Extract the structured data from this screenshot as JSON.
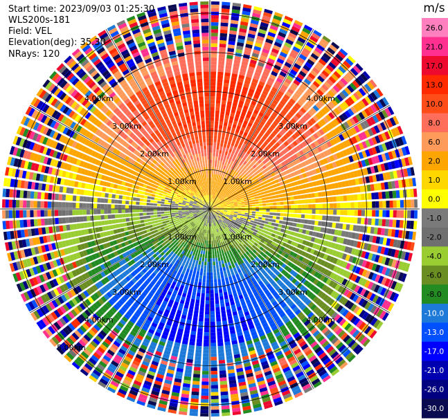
{
  "info": {
    "start_time": "Start time: 2023/09/03 01:25:30",
    "instrument": "WLS200s-181",
    "field": "Field: VEL",
    "elevation": "Elevation(deg): 35.30",
    "nrays": "NRays: 120"
  },
  "chart_data": {
    "type": "heatmap",
    "projection": "polar PPI",
    "field": "VEL",
    "unit_label": "m/s",
    "n_rays": 120,
    "max_range_km": 5.3,
    "range_rings_km": [
      1,
      2,
      3,
      4,
      5
    ],
    "ring_labels": [
      "1.00km",
      "2.00km",
      "3.00km",
      "4.00km",
      "5.00km"
    ],
    "spoke_angles_deg": [
      0,
      30,
      60,
      90,
      120,
      150,
      180,
      210,
      240,
      270,
      300,
      330
    ],
    "colorbar": {
      "tick_labels": [
        "26.0",
        "21.0",
        "17.0",
        "13.0",
        "10.0",
        "8.0",
        "6.0",
        "2.0",
        "1.0",
        "0.0",
        "-1.0",
        "-2.0",
        "-4.0",
        "-6.0",
        "-8.0",
        "-10.0",
        "-13.0",
        "-17.0",
        "-21.0",
        "-26.0",
        "-30.0"
      ],
      "colors": [
        "#ff7fbf",
        "#ff3090",
        "#ee0a2e",
        "#ff2a00",
        "#ff4d1a",
        "#ff6e5a",
        "#ff9b5a",
        "#ffa500",
        "#ffd700",
        "#ffff00",
        "#7a7a7a",
        "#6f6f6f",
        "#9acd32",
        "#6b8e23",
        "#228b22",
        "#1e7ad8",
        "#0050ff",
        "#0000ff",
        "#0000b0",
        "#000080",
        "#0a0a50"
      ]
    },
    "pattern": {
      "description": "near-field velocity dipole: positive (warm) toward top, negative (cool) toward bottom, zero line roughly horizontal",
      "positive_peak_ms": 13,
      "negative_peak_ms": -13,
      "outer_noise_start_km": 4.0
    }
  }
}
